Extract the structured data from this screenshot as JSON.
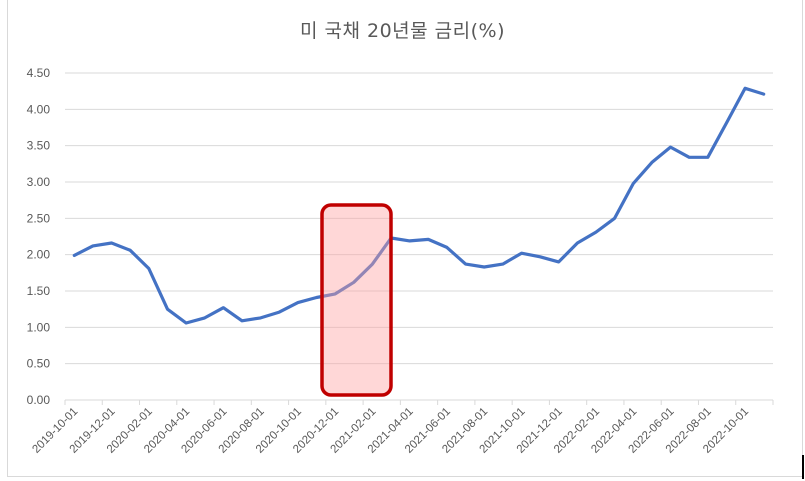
{
  "title": "미 국채 20년물 금리(%)",
  "colors": {
    "line": "#4472C4",
    "grid": "#D9D9D9",
    "axis_text": "#595959",
    "highlight_border": "#C00000",
    "highlight_fill": "rgba(255,160,160,0.42)"
  },
  "chart_data": {
    "type": "line",
    "title": "미 국채 20년물 금리(%)",
    "xlabel": "",
    "ylabel": "",
    "ylim": [
      0,
      4.5
    ],
    "yticks": [
      "0.00",
      "0.50",
      "1.00",
      "1.50",
      "2.00",
      "2.50",
      "3.00",
      "3.50",
      "4.00",
      "4.50"
    ],
    "grid": true,
    "legend": "none",
    "x_tick_labels": [
      "2019-10-01",
      "2019-12-01",
      "2020-02-01",
      "2020-04-01",
      "2020-06-01",
      "2020-08-01",
      "2020-10-01",
      "2020-12-01",
      "2021-02-01",
      "2021-04-01",
      "2021-06-01",
      "2021-08-01",
      "2021-10-01",
      "2021-12-01",
      "2022-02-01",
      "2022-04-01",
      "2022-06-01",
      "2022-08-01",
      "2022-10-01"
    ],
    "x": [
      "2019-10-01",
      "2019-11-01",
      "2019-12-01",
      "2020-01-01",
      "2020-02-01",
      "2020-03-01",
      "2020-04-01",
      "2020-05-01",
      "2020-06-01",
      "2020-07-01",
      "2020-08-01",
      "2020-09-01",
      "2020-10-01",
      "2020-11-01",
      "2020-12-01",
      "2021-01-01",
      "2021-02-01",
      "2021-03-01",
      "2021-04-01",
      "2021-05-01",
      "2021-06-01",
      "2021-07-01",
      "2021-08-01",
      "2021-09-01",
      "2021-10-01",
      "2021-11-01",
      "2021-12-01",
      "2022-01-01",
      "2022-02-01",
      "2022-03-01",
      "2022-04-01",
      "2022-05-01",
      "2022-06-01",
      "2022-07-01",
      "2022-08-01",
      "2022-09-01",
      "2022-10-01",
      "2022-11-01"
    ],
    "series": [
      {
        "name": "미 국채 20년물 금리",
        "values": [
          1.99,
          2.12,
          2.16,
          2.06,
          1.81,
          1.25,
          1.06,
          1.13,
          1.27,
          1.09,
          1.13,
          1.21,
          1.34,
          1.41,
          1.46,
          1.62,
          1.87,
          2.23,
          2.19,
          2.21,
          2.1,
          1.87,
          1.83,
          1.87,
          2.02,
          1.97,
          1.9,
          2.16,
          2.31,
          2.5,
          2.98,
          3.27,
          3.48,
          3.34,
          3.34,
          3.81,
          4.29,
          4.21
        ]
      }
    ],
    "annotations": [
      {
        "type": "highlight-box",
        "x_start": "2020-12-01",
        "x_end": "2021-03-01",
        "description": "Red rounded rectangle highlighting the rise from ~1.4% to ~2.2%"
      }
    ]
  }
}
